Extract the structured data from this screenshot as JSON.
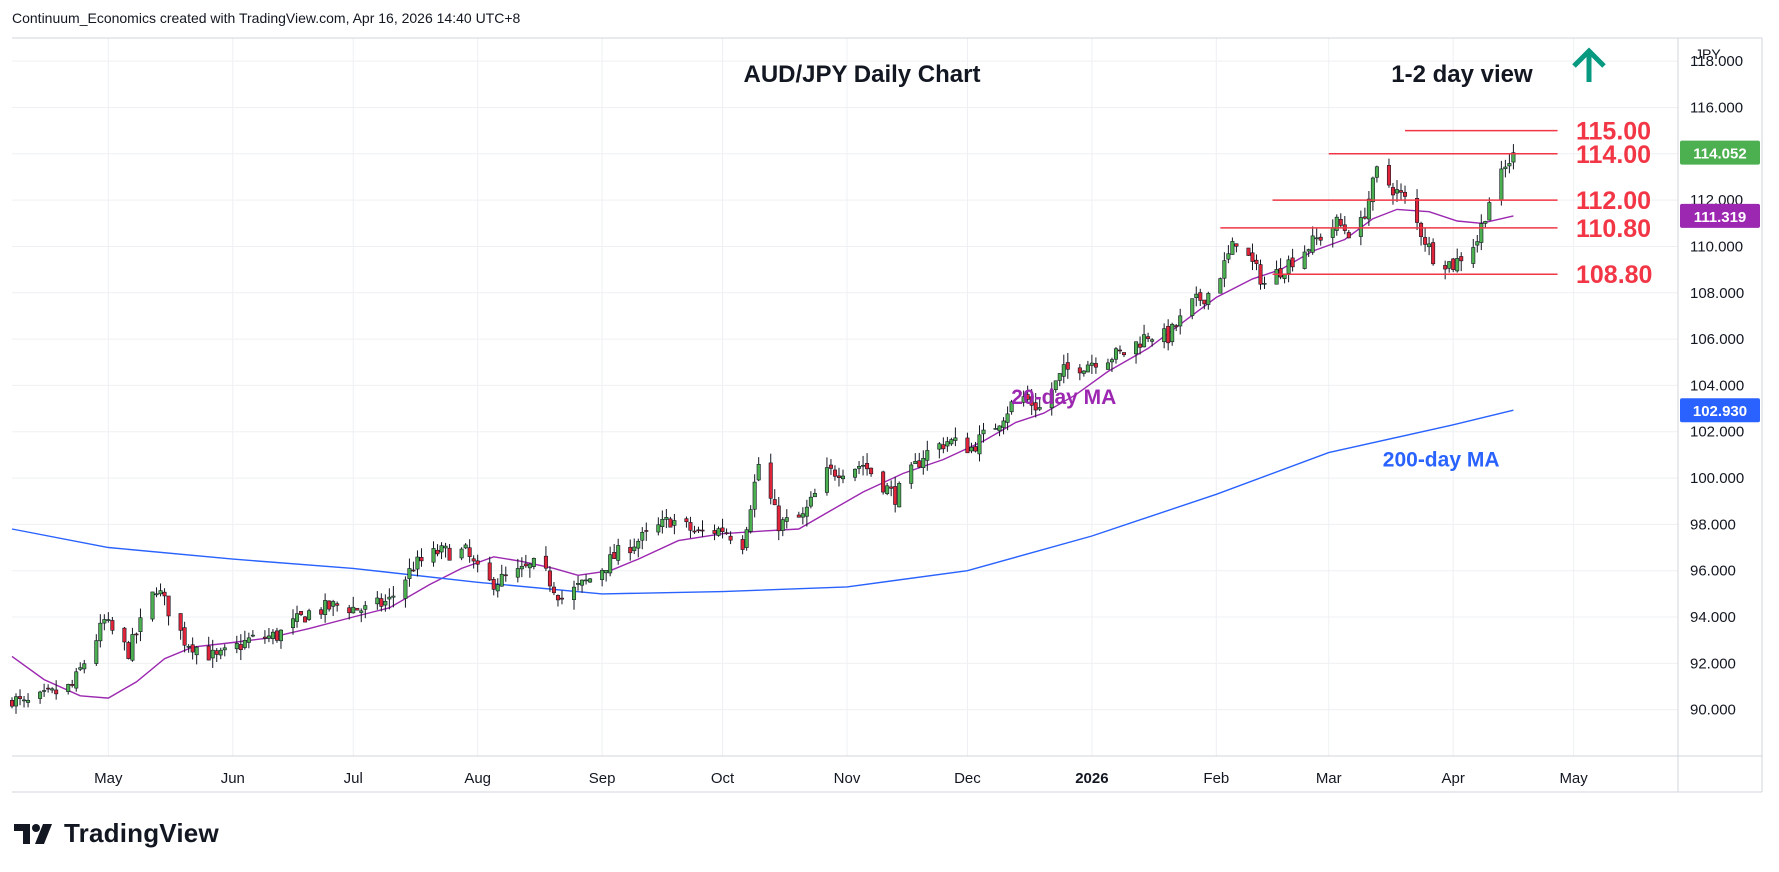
{
  "header": {
    "attribution": "Continuum_Economics created with TradingView.com, Apr 16, 2026 14:40 UTC+8"
  },
  "footer": {
    "brand": "TradingView"
  },
  "chart_data": {
    "type": "candlestick",
    "title": "AUD/JPY Daily Chart",
    "subtitle": "1-2 day view",
    "bias": "up",
    "currency": "JPY",
    "ylim": [
      88,
      119
    ],
    "y_ticks": [
      "90.000",
      "92.000",
      "94.000",
      "96.000",
      "98.000",
      "100.000",
      "102.000",
      "104.000",
      "106.000",
      "108.000",
      "110.000",
      "112.000",
      "114.000",
      "116.000",
      "118.000"
    ],
    "x_ticks": [
      "May",
      "Jun",
      "Jul",
      "Aug",
      "Sep",
      "Oct",
      "Nov",
      "Dec",
      "2026",
      "Feb",
      "Mar",
      "Apr",
      "May"
    ],
    "x_tick_dates": [
      "2025-05-01",
      "2025-06-01",
      "2025-07-01",
      "2025-08-01",
      "2025-09-01",
      "2025-10-01",
      "2025-11-01",
      "2025-12-01",
      "2026-01-01",
      "2026-02-01",
      "2026-03-01",
      "2026-04-01",
      "2026-05-01"
    ],
    "date_range": [
      "2025-04-07",
      "2026-05-27"
    ],
    "last_price": {
      "label": "114.052",
      "value": 114.052,
      "color": "#4caf50"
    },
    "ma_price_labels": [
      {
        "label": "111.319",
        "value": 111.319,
        "color": "#9c27b0"
      },
      {
        "label": "102.930",
        "value": 102.93,
        "color": "#2962ff"
      }
    ],
    "levels": [
      {
        "label": "115.00",
        "value": 115.0,
        "from": "2026-03-20",
        "to": "2026-04-27"
      },
      {
        "label": "114.00",
        "value": 114.0,
        "from": "2026-03-01",
        "to": "2026-04-27"
      },
      {
        "label": "112.00",
        "value": 112.0,
        "from": "2026-02-15",
        "to": "2026-04-27"
      },
      {
        "label": "110.80",
        "value": 110.8,
        "from": "2026-02-02",
        "to": "2026-04-27"
      },
      {
        "label": "108.80",
        "value": 108.8,
        "from": "2026-02-15",
        "to": "2026-04-27"
      }
    ],
    "level_color": "#f23645",
    "annotations": [
      {
        "text": "20-day MA",
        "date": "2025-12-25",
        "value": 103.2,
        "color": "#9c27b0"
      },
      {
        "text": "200-day MA",
        "date": "2026-03-29",
        "value": 100.5,
        "color": "#2962ff"
      }
    ],
    "up_color": "#4caf50",
    "down_color": "#e0243a",
    "series": [
      {
        "name": "20-day MA",
        "color": "#9c27b0",
        "points": [
          [
            "2025-04-07",
            92.3
          ],
          [
            "2025-04-15",
            91.3
          ],
          [
            "2025-04-24",
            90.6
          ],
          [
            "2025-05-01",
            90.5
          ],
          [
            "2025-05-08",
            91.2
          ],
          [
            "2025-05-15",
            92.2
          ],
          [
            "2025-05-22",
            92.7
          ],
          [
            "2025-06-01",
            92.9
          ],
          [
            "2025-06-10",
            93.1
          ],
          [
            "2025-06-20",
            93.5
          ],
          [
            "2025-07-01",
            94.0
          ],
          [
            "2025-07-10",
            94.4
          ],
          [
            "2025-07-20",
            95.4
          ],
          [
            "2025-07-28",
            96.1
          ],
          [
            "2025-08-05",
            96.6
          ],
          [
            "2025-08-12",
            96.4
          ],
          [
            "2025-08-20",
            96.1
          ],
          [
            "2025-08-26",
            95.8
          ],
          [
            "2025-09-03",
            96.0
          ],
          [
            "2025-09-10",
            96.5
          ],
          [
            "2025-09-20",
            97.3
          ],
          [
            "2025-10-01",
            97.6
          ],
          [
            "2025-10-10",
            97.7
          ],
          [
            "2025-10-20",
            97.8
          ],
          [
            "2025-10-28",
            98.6
          ],
          [
            "2025-11-05",
            99.4
          ],
          [
            "2025-11-15",
            100.2
          ],
          [
            "2025-11-25",
            100.8
          ],
          [
            "2025-12-05",
            101.6
          ],
          [
            "2025-12-13",
            102.4
          ],
          [
            "2025-12-20",
            102.8
          ],
          [
            "2025-12-28",
            103.6
          ],
          [
            "2026-01-05",
            104.6
          ],
          [
            "2026-01-15",
            105.6
          ],
          [
            "2026-01-25",
            106.9
          ],
          [
            "2026-02-01",
            107.8
          ],
          [
            "2026-02-10",
            108.6
          ],
          [
            "2026-02-17",
            109.0
          ],
          [
            "2026-02-25",
            109.8
          ],
          [
            "2026-03-05",
            110.3
          ],
          [
            "2026-03-12",
            111.2
          ],
          [
            "2026-03-18",
            111.6
          ],
          [
            "2026-03-26",
            111.5
          ],
          [
            "2026-04-02",
            111.1
          ],
          [
            "2026-04-08",
            111.0
          ],
          [
            "2026-04-16",
            111.32
          ]
        ]
      },
      {
        "name": "200-day MA",
        "color": "#2962ff",
        "points": [
          [
            "2025-04-07",
            97.8
          ],
          [
            "2025-05-01",
            97.0
          ],
          [
            "2025-06-01",
            96.5
          ],
          [
            "2025-07-01",
            96.1
          ],
          [
            "2025-08-01",
            95.5
          ],
          [
            "2025-09-01",
            95.0
          ],
          [
            "2025-10-01",
            95.1
          ],
          [
            "2025-11-01",
            95.3
          ],
          [
            "2025-12-01",
            96.0
          ],
          [
            "2026-01-01",
            97.5
          ],
          [
            "2026-02-01",
            99.3
          ],
          [
            "2026-03-01",
            101.1
          ],
          [
            "2026-04-01",
            102.3
          ],
          [
            "2026-04-16",
            102.93
          ]
        ]
      }
    ],
    "anchors": [
      [
        "2025-04-07",
        90.5
      ],
      [
        "2025-04-10",
        90.2
      ],
      [
        "2025-04-22",
        91.0
      ],
      [
        "2025-04-30",
        93.8
      ],
      [
        "2025-05-06",
        92.5
      ],
      [
        "2025-05-13",
        95.3
      ],
      [
        "2025-05-20",
        93.0
      ],
      [
        "2025-05-28",
        92.2
      ],
      [
        "2025-06-05",
        93.0
      ],
      [
        "2025-06-12",
        93.2
      ],
      [
        "2025-06-20",
        94.2
      ],
      [
        "2025-06-27",
        94.5
      ],
      [
        "2025-07-04",
        94.3
      ],
      [
        "2025-07-10",
        94.7
      ],
      [
        "2025-07-16",
        96.2
      ],
      [
        "2025-07-22",
        96.8
      ],
      [
        "2025-07-29",
        96.8
      ],
      [
        "2025-08-03",
        95.4
      ],
      [
        "2025-08-10",
        95.8
      ],
      [
        "2025-08-16",
        96.3
      ],
      [
        "2025-08-22",
        94.8
      ],
      [
        "2025-08-28",
        95.5
      ],
      [
        "2025-09-06",
        96.9
      ],
      [
        "2025-09-12",
        97.5
      ],
      [
        "2025-09-18",
        98.2
      ],
      [
        "2025-09-25",
        97.6
      ],
      [
        "2025-10-01",
        97.8
      ],
      [
        "2025-10-06",
        97.2
      ],
      [
        "2025-10-10",
        100.6
      ],
      [
        "2025-10-15",
        98.0
      ],
      [
        "2025-10-21",
        98.3
      ],
      [
        "2025-10-27",
        100.2
      ],
      [
        "2025-11-05",
        100.6
      ],
      [
        "2025-11-13",
        99.2
      ],
      [
        "2025-11-20",
        101.0
      ],
      [
        "2025-11-26",
        101.6
      ],
      [
        "2025-12-02",
        101.3
      ],
      [
        "2025-12-08",
        102.3
      ],
      [
        "2025-12-14",
        103.6
      ],
      [
        "2025-12-19",
        103.0
      ],
      [
        "2025-12-25",
        104.6
      ],
      [
        "2026-01-02",
        105.1
      ],
      [
        "2026-01-09",
        105.4
      ],
      [
        "2026-01-15",
        106.2
      ],
      [
        "2026-01-20",
        106.1
      ],
      [
        "2026-01-26",
        107.5
      ],
      [
        "2026-01-31",
        108.1
      ],
      [
        "2026-02-06",
        110.3
      ],
      [
        "2026-02-13",
        108.4
      ],
      [
        "2026-02-19",
        109.3
      ],
      [
        "2026-02-26",
        110.3
      ],
      [
        "2026-03-03",
        111.0
      ],
      [
        "2026-03-08",
        110.4
      ],
      [
        "2026-03-13",
        113.2
      ],
      [
        "2026-03-20",
        112.0
      ],
      [
        "2026-03-27",
        109.6
      ],
      [
        "2026-04-01",
        109.2
      ],
      [
        "2026-04-07",
        110.3
      ],
      [
        "2026-04-10",
        112.0
      ],
      [
        "2026-04-16",
        114.05
      ]
    ]
  }
}
